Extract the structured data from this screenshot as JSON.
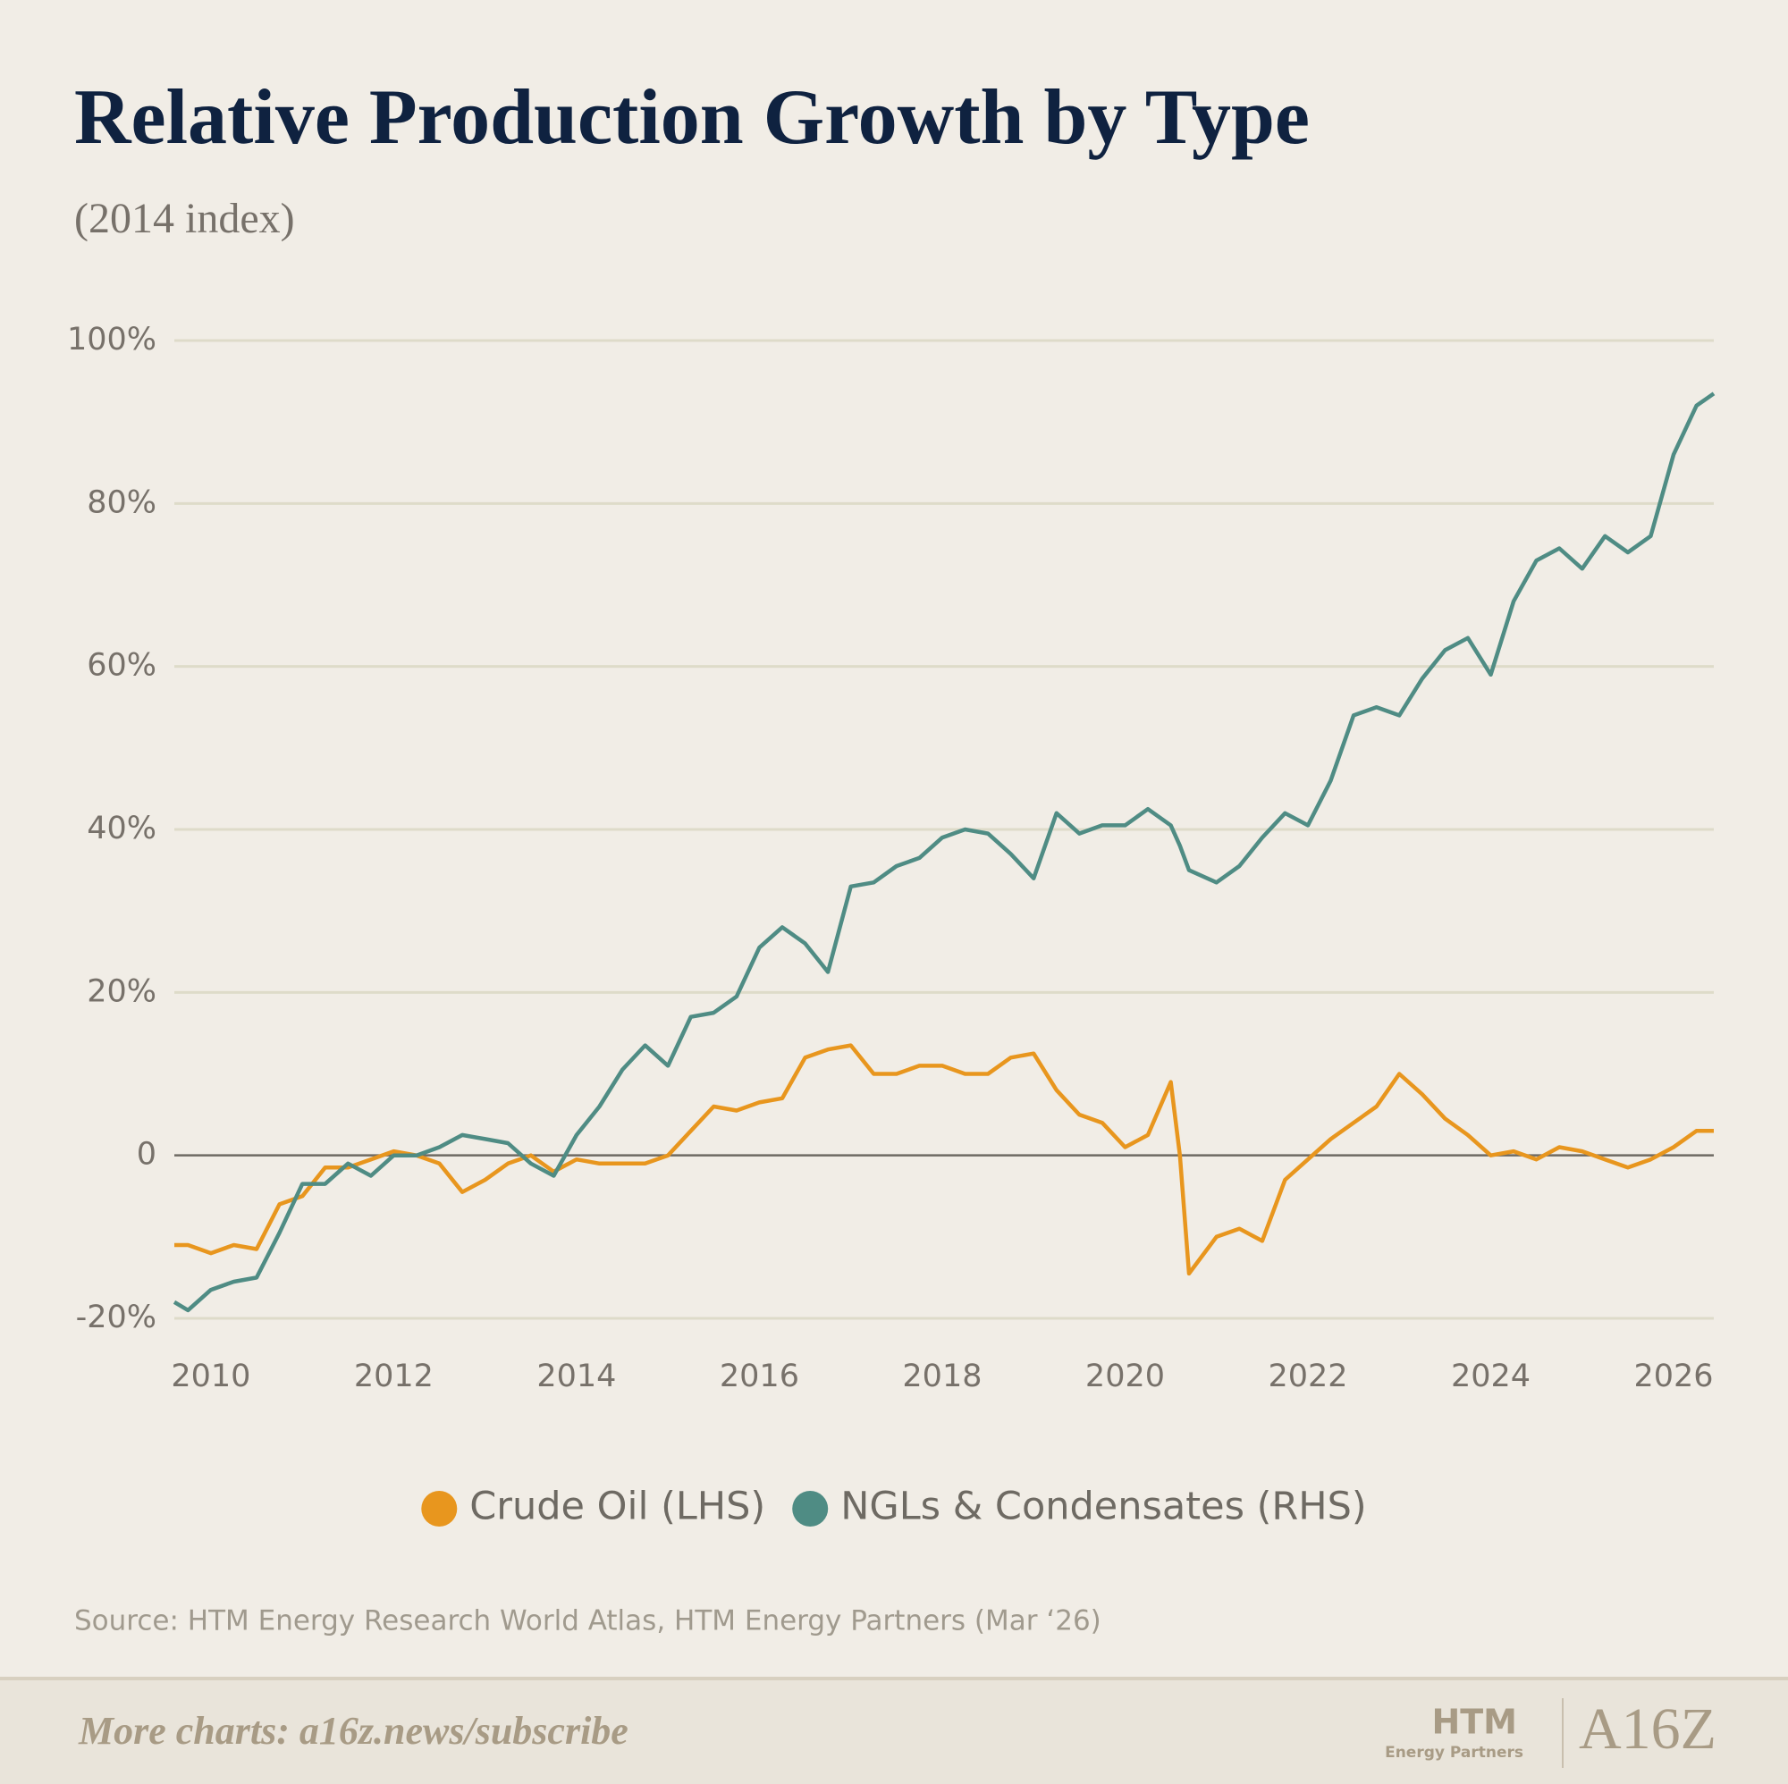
{
  "chart_data": {
    "type": "line",
    "title": "Relative Production Growth by Type",
    "subtitle": "(2014 index)",
    "source": "Source: HTM Energy Research World Atlas, HTM Energy Partners (Mar ‘26)",
    "x": [
      2009.6,
      2009.75,
      2010,
      2010.25,
      2010.5,
      2010.75,
      2011,
      2011.25,
      2011.5,
      2011.75,
      2012,
      2012.25,
      2012.5,
      2012.75,
      2013,
      2013.25,
      2013.5,
      2013.75,
      2014,
      2014.25,
      2014.5,
      2014.75,
      2015,
      2015.25,
      2015.5,
      2015.75,
      2016,
      2016.25,
      2016.5,
      2016.75,
      2017,
      2017.25,
      2017.5,
      2017.75,
      2018,
      2018.25,
      2018.5,
      2018.75,
      2019,
      2019.25,
      2019.5,
      2019.75,
      2020,
      2020.25,
      2020.5,
      2020.6,
      2020.7,
      2021,
      2021.25,
      2021.5,
      2021.75,
      2022,
      2022.25,
      2022.5,
      2022.75,
      2023,
      2023.25,
      2023.5,
      2023.75,
      2024,
      2024.25,
      2024.5,
      2024.75,
      2025,
      2025.25,
      2025.5,
      2025.75,
      2026,
      2026.25,
      2026.44
    ],
    "series": [
      {
        "name": "Crude Oil (LHS)",
        "color": "#e8961e",
        "values": [
          -11,
          -11,
          -12,
          -11,
          -11.5,
          -6,
          -5,
          -1.5,
          -1.5,
          -0.5,
          0.5,
          0,
          -1,
          -4.5,
          -3,
          -1,
          0,
          -2,
          -0.5,
          -1,
          -1,
          -1,
          0,
          3,
          6,
          5.5,
          6.5,
          7,
          12,
          13,
          13.5,
          10,
          10,
          11,
          11,
          10,
          10,
          12,
          12.5,
          8,
          5,
          4,
          1,
          2.5,
          9,
          0,
          -14.5,
          -10,
          -9,
          -10.5,
          -3,
          -0.5,
          2,
          4,
          6,
          10,
          7.5,
          4.5,
          2.5,
          0,
          0.5,
          -0.5,
          1,
          0.5,
          -0.5,
          -1.5,
          -0.5,
          1,
          3,
          3
        ]
      },
      {
        "name": "NGLs & Condensates (RHS)",
        "color": "#4f8c84",
        "values": [
          -18,
          -19,
          -16.5,
          -15.5,
          -15,
          -9.5,
          -3.5,
          -3.5,
          -1,
          -2.5,
          0,
          0,
          1,
          2.5,
          2,
          1.5,
          -1,
          -2.5,
          2.5,
          6,
          10.5,
          13.5,
          11,
          17,
          17.5,
          19.5,
          25.5,
          28,
          26,
          22.5,
          33,
          33.5,
          35.5,
          36.5,
          39,
          40,
          39.5,
          37,
          34,
          42,
          39.5,
          40.5,
          40.5,
          42.5,
          40.5,
          38,
          35,
          33.5,
          35.5,
          39,
          42,
          40.5,
          46,
          54,
          55,
          54,
          58.5,
          62,
          63.5,
          59,
          68,
          73,
          74.5,
          72,
          76,
          74,
          76,
          86,
          92,
          93.5
        ]
      }
    ],
    "xlim": [
      2009.6,
      2026.44
    ],
    "xticks": [
      2010,
      2012,
      2014,
      2016,
      2018,
      2020,
      2022,
      2024,
      2026
    ],
    "ylim": [
      -20,
      100
    ],
    "yticks": [
      {
        "value": -20,
        "label": "-20%"
      },
      0,
      {
        "value": 20,
        "label": "20%"
      },
      {
        "value": 40,
        "label": "40%"
      },
      {
        "value": 60,
        "label": "60%"
      },
      {
        "value": 80,
        "label": "80%"
      },
      {
        "value": 100,
        "label": "100%"
      }
    ],
    "grid": true,
    "legend": "bottom"
  },
  "footer": {
    "cta": "More charts: a16z.news/subscribe",
    "partner": "HTM",
    "partner_sub": "Energy Partners",
    "brand": "A16Z"
  }
}
